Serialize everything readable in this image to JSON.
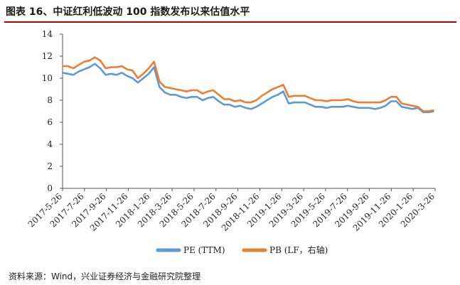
{
  "title": "图表 16、中证红利低波动 100 指数发布以来估值水平",
  "source": "资料来源：Wind，兴业证券经济与金融研究院整理",
  "colors": {
    "pe": "#5b9bd5",
    "pb": "#ed7d31",
    "title_rule": "#b40000"
  },
  "chart_data": {
    "type": "line",
    "title": "中证红利低波动 100 指数发布以来估值水平",
    "xlabel": "",
    "ylabel": "",
    "ylim": [
      0,
      14
    ],
    "yticks": [
      0,
      2,
      4,
      6,
      8,
      10,
      12,
      14
    ],
    "grid": false,
    "legend_position": "bottom",
    "x_tick_labels": [
      "2017-5-26",
      "2017-7-26",
      "2017-9-26",
      "2017-11-26",
      "2018-1-26",
      "2018-3-26",
      "2018-5-26",
      "2018-7-26",
      "2018-9-26",
      "2018-11-26",
      "2019-1-26",
      "2019-3-26",
      "2019-5-26",
      "2019-7-26",
      "2019-9-26",
      "2019-11-26",
      "2020-1-26",
      "2020-3-26"
    ],
    "x_range": [
      0,
      34.6
    ],
    "series": [
      {
        "name": "PE (TTM)",
        "x": [
          0,
          0.5,
          1,
          1.5,
          2,
          2.5,
          3,
          3.5,
          4,
          4.5,
          5,
          5.5,
          6,
          6.5,
          7,
          7.5,
          8,
          8.5,
          9,
          9.5,
          10,
          10.5,
          11,
          11.5,
          12,
          12.5,
          13,
          13.5,
          14,
          14.5,
          15,
          15.5,
          16,
          16.5,
          17,
          17.5,
          18,
          18.5,
          19,
          19.5,
          20,
          20.5,
          21,
          21.5,
          22,
          22.5,
          23,
          23.5,
          24,
          24.5,
          25,
          25.5,
          26,
          26.5,
          27,
          27.5,
          28,
          28.5,
          29,
          29.5,
          30,
          30.5,
          31,
          31.5,
          32,
          32.5,
          33,
          33.5,
          34,
          34.5
        ],
        "values": [
          10.5,
          10.4,
          10.3,
          10.6,
          10.8,
          11.0,
          11.3,
          10.9,
          10.3,
          10.4,
          10.3,
          10.5,
          10.2,
          10.0,
          9.6,
          10.0,
          10.4,
          11.0,
          9.2,
          8.7,
          8.5,
          8.5,
          8.3,
          8.2,
          8.3,
          8.3,
          8.0,
          8.2,
          8.3,
          7.9,
          7.6,
          7.6,
          7.4,
          7.5,
          7.3,
          7.2,
          7.4,
          7.7,
          8.0,
          8.3,
          8.5,
          8.8,
          7.7,
          7.8,
          7.8,
          7.8,
          7.6,
          7.4,
          7.4,
          7.3,
          7.4,
          7.4,
          7.4,
          7.5,
          7.4,
          7.3,
          7.3,
          7.3,
          7.2,
          7.3,
          7.5,
          7.9,
          7.9,
          7.4,
          7.3,
          7.2,
          7.3,
          6.9,
          6.9,
          7.0
        ]
      },
      {
        "name": "PB (LF，右轴)",
        "x": [
          0,
          0.5,
          1,
          1.5,
          2,
          2.5,
          3,
          3.5,
          4,
          4.5,
          5,
          5.5,
          6,
          6.5,
          7,
          7.5,
          8,
          8.5,
          9,
          9.5,
          10,
          10.5,
          11,
          11.5,
          12,
          12.5,
          13,
          13.5,
          14,
          14.5,
          15,
          15.5,
          16,
          16.5,
          17,
          17.5,
          18,
          18.5,
          19,
          19.5,
          20,
          20.5,
          21,
          21.5,
          22,
          22.5,
          23,
          23.5,
          24,
          24.5,
          25,
          25.5,
          26,
          26.5,
          27,
          27.5,
          28,
          28.5,
          29,
          29.5,
          30,
          30.5,
          31,
          31.5,
          32,
          32.5,
          33,
          33.5,
          34,
          34.5
        ],
        "values": [
          11.1,
          11.1,
          10.9,
          11.2,
          11.5,
          11.6,
          11.9,
          11.6,
          10.9,
          11.0,
          11.0,
          11.1,
          10.8,
          10.7,
          10.0,
          10.4,
          10.9,
          11.5,
          9.7,
          9.2,
          9.1,
          9.0,
          8.9,
          8.8,
          8.9,
          8.9,
          8.6,
          8.8,
          8.9,
          8.5,
          8.1,
          8.1,
          7.9,
          8.0,
          7.8,
          7.8,
          8.0,
          8.4,
          8.7,
          9.0,
          9.2,
          9.4,
          8.3,
          8.4,
          8.4,
          8.4,
          8.2,
          8.0,
          8.0,
          7.9,
          8.0,
          8.0,
          8.0,
          8.1,
          7.9,
          7.8,
          7.8,
          7.8,
          7.8,
          7.8,
          8.0,
          8.3,
          8.3,
          7.7,
          7.6,
          7.5,
          7.4,
          7.0,
          7.0,
          7.1
        ]
      }
    ]
  }
}
